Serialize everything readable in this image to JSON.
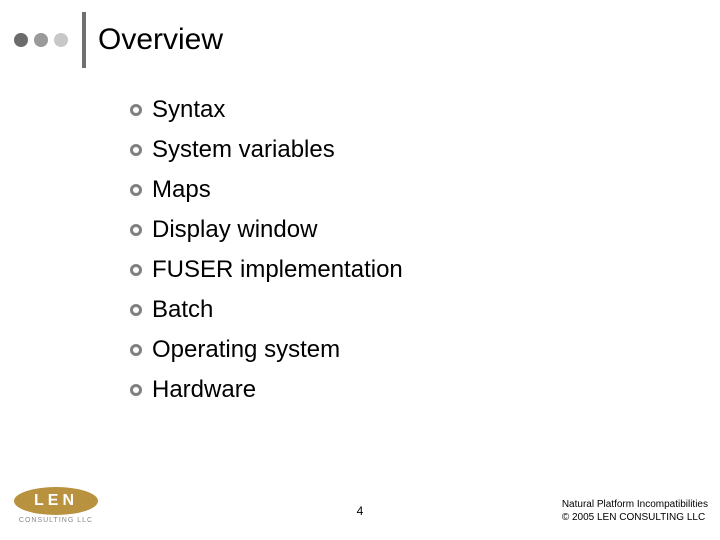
{
  "colors": {
    "dot_dark": "#6b6b6b",
    "dot_mid": "#9a9a9a",
    "dot_light": "#c8c8c8",
    "vbar": "#707070",
    "bullet_border": "#808080",
    "logo_bg": "#b8923e",
    "text": "#000000"
  },
  "title": "Overview",
  "bullets": [
    "Syntax",
    "System variables",
    "Maps",
    "Display window",
    "FUSER implementation",
    "Batch",
    "Operating system",
    "Hardware"
  ],
  "page_number": "4",
  "footer": {
    "line1": "Natural Platform Incompatibilities",
    "line2": "© 2005 LEN CONSULTING LLC"
  },
  "logo": {
    "text": "LEN",
    "sub": "CONSULTING LLC"
  }
}
